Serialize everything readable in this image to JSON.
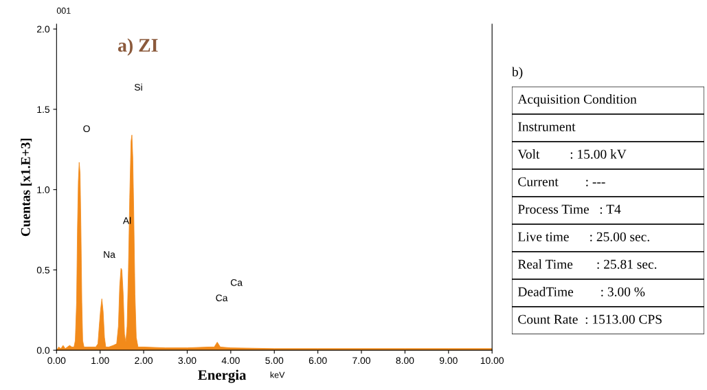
{
  "chart_data": [
    {
      "type": "area",
      "title": "a) ZI",
      "subtitle": "001",
      "xlabel": "Energia",
      "ylabel": "Cuentas [x1.E+3]",
      "x": [
        0.0,
        0.05,
        0.1,
        0.15,
        0.2,
        0.25,
        0.3,
        0.35,
        0.4,
        0.43,
        0.46,
        0.48,
        0.5,
        0.52,
        0.54,
        0.56,
        0.58,
        0.6,
        0.63,
        0.7,
        0.8,
        0.9,
        0.95,
        0.98,
        1.01,
        1.04,
        1.07,
        1.1,
        1.13,
        1.2,
        1.3,
        1.38,
        1.42,
        1.45,
        1.48,
        1.5,
        1.53,
        1.56,
        1.59,
        1.62,
        1.65,
        1.68,
        1.71,
        1.73,
        1.75,
        1.77,
        1.8,
        1.83,
        1.87,
        2.0,
        2.5,
        3.0,
        3.5,
        3.62,
        3.69,
        3.76,
        4.0,
        5.0,
        6.0,
        7.0,
        8.0,
        9.0,
        10.0
      ],
      "series": [
        {
          "color": "#f28a1a",
          "values": [
            0.0,
            0.02,
            0.01,
            0.03,
            0.01,
            0.02,
            0.03,
            0.02,
            0.02,
            0.06,
            0.3,
            0.75,
            1.05,
            1.17,
            1.1,
            0.75,
            0.3,
            0.06,
            0.02,
            0.02,
            0.02,
            0.02,
            0.04,
            0.15,
            0.25,
            0.32,
            0.24,
            0.08,
            0.02,
            0.02,
            0.03,
            0.04,
            0.15,
            0.4,
            0.51,
            0.5,
            0.35,
            0.1,
            0.05,
            0.15,
            0.5,
            0.95,
            1.3,
            1.34,
            1.2,
            0.9,
            0.35,
            0.08,
            0.02,
            0.02,
            0.015,
            0.015,
            0.02,
            0.02,
            0.05,
            0.02,
            0.015,
            0.01,
            0.01,
            0.01,
            0.01,
            0.01,
            0.01
          ]
        }
      ],
      "xlim": [
        0,
        10
      ],
      "ylim": [
        0,
        2.03
      ],
      "xticks": [
        {
          "value": 0,
          "label": "0.00"
        },
        {
          "value": 1,
          "label": "1.00"
        },
        {
          "value": 2,
          "label": "2.00"
        },
        {
          "value": 3,
          "label": "3.00"
        },
        {
          "value": 4,
          "label": "4.00"
        },
        {
          "value": 5,
          "label": "5.00"
        },
        {
          "value": 6,
          "label": "6.00"
        },
        {
          "value": 7,
          "label": "7.00"
        },
        {
          "value": 8,
          "label": "8.00"
        },
        {
          "value": 9,
          "label": "9.00"
        },
        {
          "value": 10,
          "label": "10.00"
        }
      ],
      "yticks": [
        {
          "value": 0,
          "label": "0.0"
        },
        {
          "value": 0.5,
          "label": "0.5"
        },
        {
          "value": 1,
          "label": "1.0"
        },
        {
          "value": 1.5,
          "label": "1.5"
        },
        {
          "value": 2,
          "label": "2.0"
        }
      ],
      "annotations": [
        "O",
        "Si",
        "Al",
        "Na",
        "Ca",
        "Ca",
        "keV"
      ]
    },
    {
      "type": "other",
      "title": "b)",
      "annotations": [
        "Acquisition Condition",
        "Instrument",
        "Volt         : 15.00 kV",
        "Current        : ---",
        "Process Time   : T4",
        "Live time      : 25.00 sec.",
        "Real Time       : 25.81 sec.",
        "DeadTime        : 3.00 %",
        "Count Rate  : 1513.00 CPS"
      ]
    }
  ]
}
